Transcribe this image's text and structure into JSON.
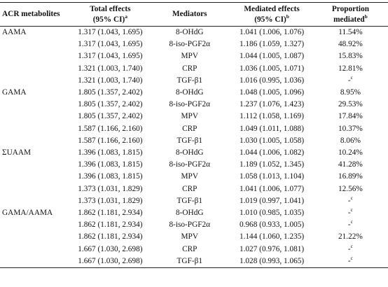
{
  "headers": {
    "metabolites": "ACR metabolites",
    "total_line1": "Total effects",
    "total_line2": "(95% CI)",
    "total_sup": "a",
    "mediators": "Mediators",
    "mediated_line1": "Mediated effects",
    "mediated_line2": "(95% CI)",
    "mediated_sup": "b",
    "proportion_line1": "Proportion",
    "proportion_line2": "mediated",
    "proportion_sup": "b"
  },
  "rows": [
    {
      "metabolite": "AAMA",
      "total": "1.317 (1.043, 1.695)",
      "mediator": "8-OHdG",
      "mediated": "1.041 (1.006, 1.076)",
      "proportion": "11.54%",
      "sup": ""
    },
    {
      "metabolite": "",
      "total": "1.317 (1.043, 1.695)",
      "mediator": "8-iso-PGF2α",
      "mediated": "1.186 (1.059, 1.327)",
      "proportion": "48.92%",
      "sup": ""
    },
    {
      "metabolite": "",
      "total": "1.317 (1.043, 1.695)",
      "mediator": "MPV",
      "mediated": "1.044 (1.005, 1.087)",
      "proportion": "15.83%",
      "sup": ""
    },
    {
      "metabolite": "",
      "total": "1.321 (1.003, 1.740)",
      "mediator": "CRP",
      "mediated": "1.036 (1.005, 1.071)",
      "proportion": "12.81%",
      "sup": ""
    },
    {
      "metabolite": "",
      "total": "1.321 (1.003, 1.740)",
      "mediator": "TGF-β1",
      "mediated": "1.016 (0.995, 1.036)",
      "proportion": "-",
      "sup": "c"
    },
    {
      "metabolite": "GAMA",
      "total": "1.805 (1.357, 2.402)",
      "mediator": "8-OHdG",
      "mediated": "1.048 (1.005, 1.096)",
      "proportion": "8.95%",
      "sup": ""
    },
    {
      "metabolite": "",
      "total": "1.805 (1.357, 2.402)",
      "mediator": "8-iso-PGF2α",
      "mediated": "1.237 (1.076, 1.423)",
      "proportion": "29.53%",
      "sup": ""
    },
    {
      "metabolite": "",
      "total": "1.805 (1.357, 2.402)",
      "mediator": "MPV",
      "mediated": "1.112 (1.058, 1.169)",
      "proportion": "17.84%",
      "sup": ""
    },
    {
      "metabolite": "",
      "total": "1.587 (1.166, 2.160)",
      "mediator": "CRP",
      "mediated": "1.049 (1.011, 1.088)",
      "proportion": "10.37%",
      "sup": ""
    },
    {
      "metabolite": "",
      "total": "1.587 (1.166, 2.160)",
      "mediator": "TGF-β1",
      "mediated": "1.030 (1.005, 1.058)",
      "proportion": "8.06%",
      "sup": ""
    },
    {
      "metabolite": "ΣUAAM",
      "total": "1.396 (1.083, 1.815)",
      "mediator": "8-OHdG",
      "mediated": "1.044 (1.006, 1.082)",
      "proportion": "10.24%",
      "sup": ""
    },
    {
      "metabolite": "",
      "total": "1.396 (1.083, 1.815)",
      "mediator": "8-iso-PGF2α",
      "mediated": "1.189 (1.052, 1.345)",
      "proportion": "41.28%",
      "sup": ""
    },
    {
      "metabolite": "",
      "total": "1.396 (1.083, 1.815)",
      "mediator": "MPV",
      "mediated": "1.058 (1.013, 1.104)",
      "proportion": "16.89%",
      "sup": ""
    },
    {
      "metabolite": "",
      "total": "1.373 (1.031, 1.829)",
      "mediator": "CRP",
      "mediated": "1.041 (1.006, 1.077)",
      "proportion": "12.56%",
      "sup": ""
    },
    {
      "metabolite": "",
      "total": "1.373 (1.031, 1.829)",
      "mediator": "TGF-β1",
      "mediated": "1.019 (0.997, 1.041)",
      "proportion": "-",
      "sup": "c"
    },
    {
      "metabolite": "GAMA/AAMA",
      "total": "1.862 (1.181, 2.934)",
      "mediator": "8-OHdG",
      "mediated": "1.010 (0.985, 1.035)",
      "proportion": "-",
      "sup": "c"
    },
    {
      "metabolite": "",
      "total": "1.862 (1.181, 2.934)",
      "mediator": "8-iso-PGF2α",
      "mediated": "0.968 (0.933, 1.005)",
      "proportion": "-",
      "sup": "c"
    },
    {
      "metabolite": "",
      "total": "1.862 (1.181, 2.934)",
      "mediator": "MPV",
      "mediated": "1.144 (1.060, 1.235)",
      "proportion": "21.22%",
      "sup": ""
    },
    {
      "metabolite": "",
      "total": "1.667 (1.030, 2.698)",
      "mediator": "CRP",
      "mediated": "1.027 (0.976, 1.081)",
      "proportion": "-",
      "sup": "c"
    },
    {
      "metabolite": "",
      "total": "1.667 (1.030, 2.698)",
      "mediator": "TGF-β1",
      "mediated": "1.028 (0.993, 1.065)",
      "proportion": "-",
      "sup": "c"
    }
  ]
}
